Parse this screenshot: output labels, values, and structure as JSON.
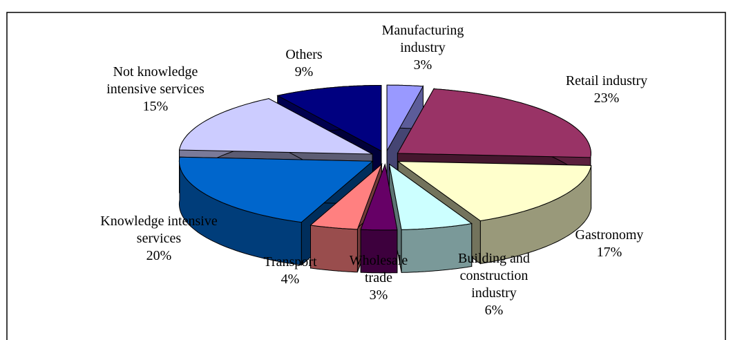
{
  "chart_data": {
    "type": "pie3d",
    "categories": [
      "Manufacturing industry",
      "Retail industry",
      "Gastronomy",
      "Building and construction industry",
      "Wholesale trade",
      "Transport",
      "Knowledge intensive services",
      "Not knowledge intensive services",
      "Others"
    ],
    "values": [
      3,
      23,
      17,
      6,
      3,
      4,
      20,
      15,
      9
    ],
    "value_labels": [
      "3%",
      "23%",
      "17%",
      "6%",
      "3%",
      "4%",
      "20%",
      "15%",
      "9%"
    ],
    "colors": [
      "#9999ff",
      "#993366",
      "#ffffcc",
      "#ccffff",
      "#660066",
      "#ff8080",
      "#0066cc",
      "#ccccff",
      "#000080"
    ]
  }
}
